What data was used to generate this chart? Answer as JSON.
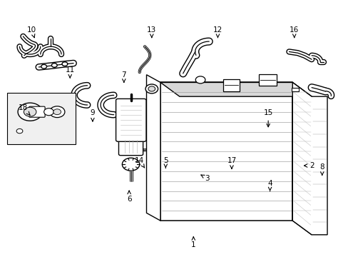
{
  "background_color": "#ffffff",
  "line_color": "#000000",
  "label_color": "#000000",
  "fig_width": 4.89,
  "fig_height": 3.6,
  "dpi": 100,
  "labels": {
    "1": [
      0.555,
      0.955,
      0.555,
      0.92
    ],
    "2": [
      0.895,
      0.645,
      0.865,
      0.645
    ],
    "3": [
      0.595,
      0.695,
      0.575,
      0.68
    ],
    "4": [
      0.775,
      0.715,
      0.775,
      0.745
    ],
    "5": [
      0.475,
      0.625,
      0.475,
      0.655
    ],
    "6": [
      0.37,
      0.775,
      0.37,
      0.74
    ],
    "7": [
      0.355,
      0.29,
      0.355,
      0.33
    ],
    "8": [
      0.925,
      0.65,
      0.925,
      0.685
    ],
    "9": [
      0.265,
      0.44,
      0.265,
      0.475
    ],
    "10": [
      0.09,
      0.115,
      0.1,
      0.155
    ],
    "11": [
      0.2,
      0.27,
      0.2,
      0.305
    ],
    "12": [
      0.625,
      0.115,
      0.625,
      0.155
    ],
    "13": [
      0.435,
      0.115,
      0.435,
      0.155
    ],
    "14": [
      0.4,
      0.625,
      0.415,
      0.655
    ],
    "15": [
      0.77,
      0.44,
      0.77,
      0.505
    ],
    "16": [
      0.845,
      0.115,
      0.845,
      0.155
    ],
    "17": [
      0.665,
      0.625,
      0.665,
      0.66
    ],
    "18": [
      0.065,
      0.42,
      0.09,
      0.455
    ]
  }
}
